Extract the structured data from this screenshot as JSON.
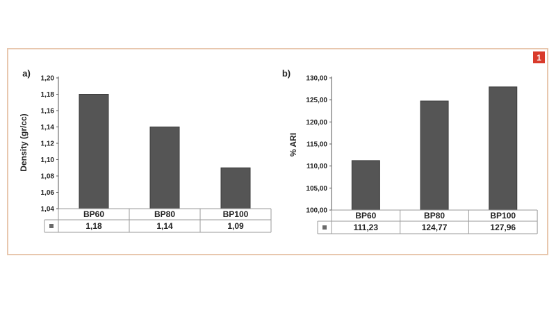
{
  "figure": {
    "badge": "1"
  },
  "chart_data": [
    {
      "type": "bar",
      "panel_label": "a)",
      "ylabel": "Density (gr/cc)",
      "categories": [
        "BP60",
        "BP80",
        "BP100"
      ],
      "values": [
        1.18,
        1.14,
        1.09
      ],
      "value_labels": [
        "1,18",
        "1,14",
        "1,09"
      ],
      "ylim": [
        1.04,
        1.2
      ],
      "yticks": [
        1.04,
        1.06,
        1.08,
        1.1,
        1.12,
        1.14,
        1.16,
        1.18,
        1.2
      ],
      "ytick_labels": [
        "1,04",
        "1,06",
        "1,08",
        "1,10",
        "1,12",
        "1,14",
        "1,16",
        "1,18",
        "1,20"
      ],
      "grid": false,
      "bar_color": "#555555"
    },
    {
      "type": "bar",
      "panel_label": "b)",
      "ylabel": "% ARI",
      "categories": [
        "BP60",
        "BP80",
        "BP100"
      ],
      "values": [
        111.23,
        124.77,
        127.96
      ],
      "value_labels": [
        "111,23",
        "124,77",
        "127,96"
      ],
      "ylim": [
        100,
        130
      ],
      "yticks": [
        100,
        105,
        110,
        115,
        120,
        125,
        130
      ],
      "ytick_labels": [
        "100,00",
        "105,00",
        "110,00",
        "115,00",
        "120,00",
        "125,00",
        "130,00"
      ],
      "grid": false,
      "bar_color": "#555555"
    }
  ]
}
